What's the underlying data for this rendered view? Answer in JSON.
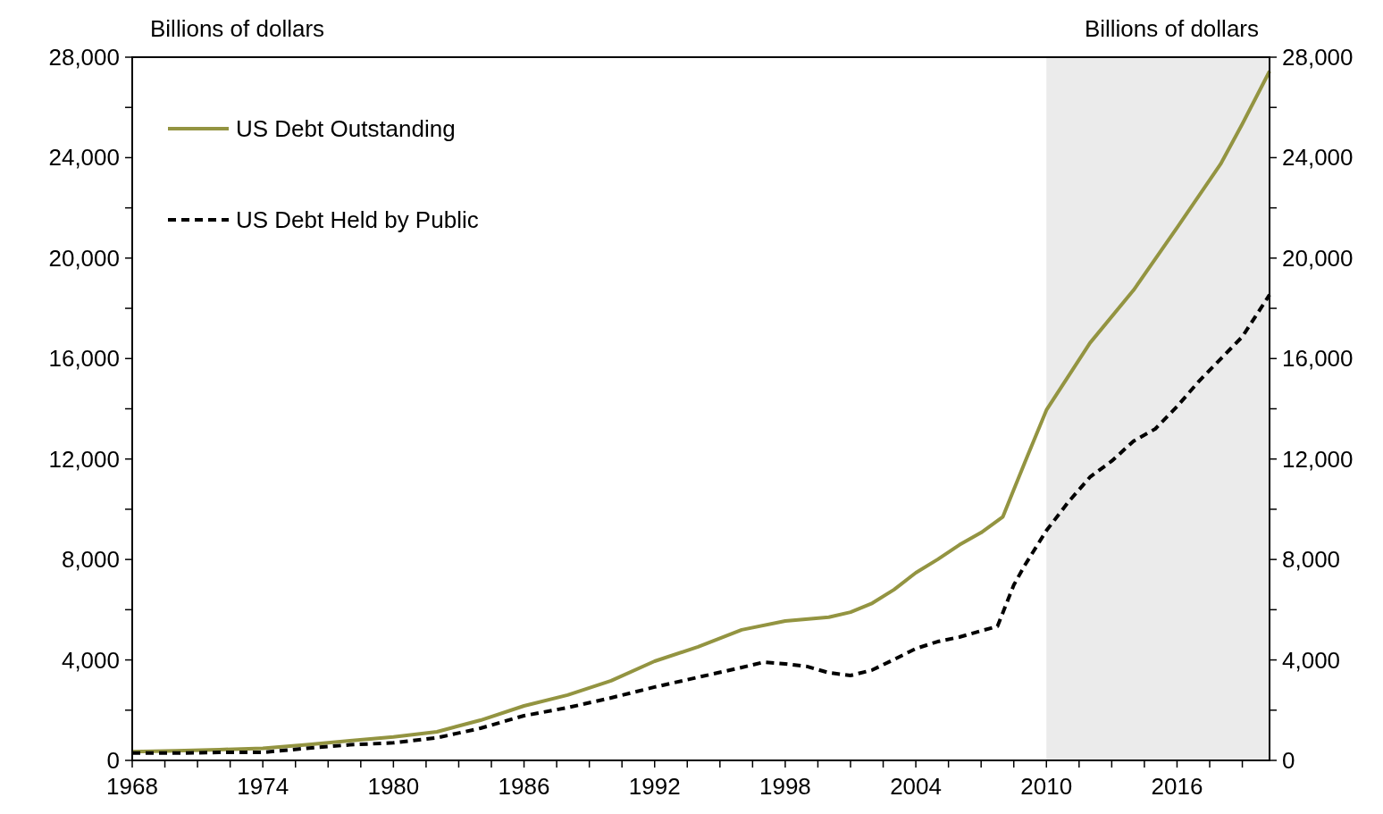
{
  "chart_data": {
    "type": "line",
    "ylabel": "Billions of dollars",
    "y2label": "Billions of dollars",
    "xlim": [
      1968,
      2020.25
    ],
    "xticks": [
      1968,
      {
        "value": 1969.5,
        "label": null
      },
      {
        "value": 1971,
        "label": null
      },
      {
        "value": 1972.5,
        "label": null
      },
      1974,
      {
        "value": 1975.5,
        "label": null
      },
      {
        "value": 1977,
        "label": null
      },
      {
        "value": 1978.5,
        "label": null
      },
      1980,
      {
        "value": 1981.5,
        "label": null
      },
      {
        "value": 1983,
        "label": null
      },
      {
        "value": 1984.5,
        "label": null
      },
      1986,
      {
        "value": 1987.5,
        "label": null
      },
      {
        "value": 1989,
        "label": null
      },
      {
        "value": 1990.5,
        "label": null
      },
      1992,
      {
        "value": 1993.5,
        "label": null
      },
      {
        "value": 1995,
        "label": null
      },
      {
        "value": 1996.5,
        "label": null
      },
      1998,
      {
        "value": 1999.5,
        "label": null
      },
      {
        "value": 2001,
        "label": null
      },
      {
        "value": 2002.5,
        "label": null
      },
      2004,
      {
        "value": 2005.5,
        "label": null
      },
      {
        "value": 2007,
        "label": null
      },
      {
        "value": 2008.5,
        "label": null
      },
      2010,
      {
        "value": 2011.5,
        "label": null
      },
      {
        "value": 2013,
        "label": null
      },
      {
        "value": 2014.5,
        "label": null
      },
      2016,
      {
        "value": 2017.5,
        "label": null
      },
      {
        "value": 2019,
        "label": null
      }
    ],
    "ylim": [
      0,
      28000
    ],
    "yticks": [
      {
        "value": 0,
        "label": "0"
      },
      {
        "value": 2000,
        "label": null
      },
      {
        "value": 4000,
        "label": "4,000"
      },
      {
        "value": 6000,
        "label": null
      },
      {
        "value": 8000,
        "label": "8,000"
      },
      {
        "value": 10000,
        "label": null
      },
      {
        "value": 12000,
        "label": "12,000"
      },
      {
        "value": 14000,
        "label": null
      },
      {
        "value": 16000,
        "label": "16,000"
      },
      {
        "value": 18000,
        "label": null
      },
      {
        "value": 20000,
        "label": "20,000"
      },
      {
        "value": 22000,
        "label": null
      },
      {
        "value": 24000,
        "label": "24,000"
      },
      {
        "value": 26000,
        "label": null
      },
      {
        "value": 28000,
        "label": "28,000"
      }
    ],
    "y2lim": [
      0,
      28000
    ],
    "y2ticks": [
      {
        "value": 0,
        "label": "0"
      },
      {
        "value": 2000,
        "label": null
      },
      {
        "value": 4000,
        "label": "4,000"
      },
      {
        "value": 6000,
        "label": null
      },
      {
        "value": 8000,
        "label": "8,000"
      },
      {
        "value": 10000,
        "label": null
      },
      {
        "value": 12000,
        "label": "12,000"
      },
      {
        "value": 14000,
        "label": null
      },
      {
        "value": 16000,
        "label": "16,000"
      },
      {
        "value": 18000,
        "label": null
      },
      {
        "value": 20000,
        "label": "20,000"
      },
      {
        "value": 22000,
        "label": null
      },
      {
        "value": 24000,
        "label": "24,000"
      },
      {
        "value": 26000,
        "label": null
      },
      {
        "value": 28000,
        "label": "28,000"
      }
    ],
    "bands": [
      {
        "axis": "x",
        "from": 2010,
        "to": 2020.25,
        "color": "#ebebeb"
      }
    ],
    "legend": "top left",
    "grid": false,
    "series": [
      {
        "name": "US Debt Outstanding",
        "color": "#939441",
        "line_style": "solid",
        "x": [
          1968,
          1970,
          1972,
          1974,
          1976,
          1978,
          1980,
          1982,
          1984,
          1986,
          1988,
          1990,
          1992,
          1994,
          1996,
          1998,
          2000,
          2001,
          2002,
          2003,
          2004,
          2005,
          2006,
          2007,
          2008,
          2008.5,
          2009,
          2010,
          2012,
          2014,
          2016,
          2018,
          2019,
          2020.25
        ],
        "values": [
          350,
          380,
          430,
          480,
          620,
          780,
          930,
          1140,
          1600,
          2170,
          2600,
          3170,
          3950,
          4520,
          5200,
          5550,
          5700,
          5900,
          6260,
          6800,
          7470,
          8000,
          8580,
          9070,
          9700,
          10780,
          11850,
          13950,
          16620,
          18720,
          21210,
          23740,
          25340,
          27440
        ]
      },
      {
        "name": "US Debt Held by Public",
        "color": "#000000",
        "line_style": "dashed",
        "x": [
          1968,
          1970,
          1972,
          1974,
          1976,
          1978,
          1980,
          1982,
          1984,
          1986,
          1988,
          1990,
          1992,
          1994,
          1996,
          1997,
          1998,
          1999,
          2000,
          2001,
          2002,
          2003,
          2004,
          2005,
          2006,
          2007,
          2007.75,
          2008.5,
          2009,
          2010,
          2011,
          2012,
          2013,
          2014,
          2015,
          2016,
          2017,
          2018,
          2019,
          2020.25
        ],
        "values": [
          290,
          290,
          320,
          320,
          480,
          620,
          700,
          900,
          1280,
          1780,
          2100,
          2490,
          2920,
          3310,
          3700,
          3910,
          3840,
          3740,
          3490,
          3380,
          3600,
          4020,
          4450,
          4730,
          4910,
          5160,
          5340,
          6980,
          7760,
          9150,
          10280,
          11280,
          11920,
          12710,
          13200,
          14090,
          15090,
          15980,
          16870,
          18540
        ]
      }
    ]
  }
}
